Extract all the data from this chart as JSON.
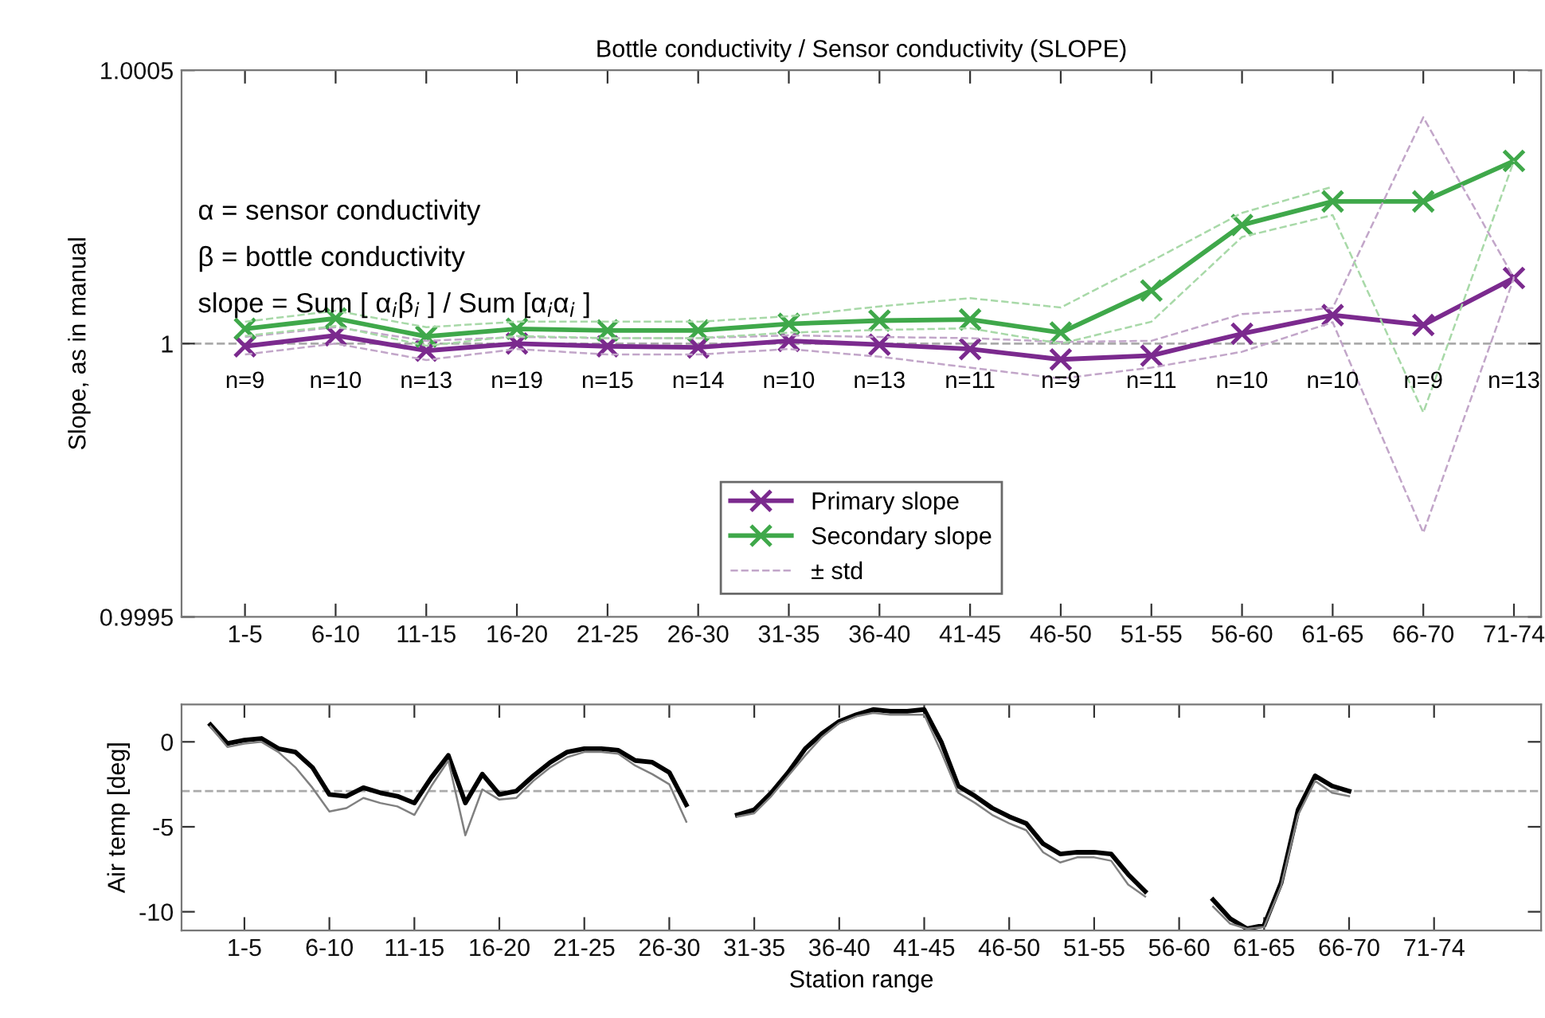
{
  "chart_data": [
    {
      "type": "line",
      "title": "Bottle conductivity / Sensor conductivity (SLOPE)",
      "ylabel": "Slope, as in manual",
      "categories": [
        "1-5",
        "6-10",
        "11-15",
        "16-20",
        "21-25",
        "26-30",
        "31-35",
        "36-40",
        "41-45",
        "46-50",
        "51-55",
        "56-60",
        "61-65",
        "66-70",
        "71-74"
      ],
      "ylim": [
        0.9995,
        1.0005
      ],
      "yticks": [
        0.9995,
        1,
        1.0005
      ],
      "marker": "cross",
      "line_style": "solid",
      "grid": false,
      "legend": "bottom",
      "series": [
        {
          "name": "Primary slope",
          "color": "#7b2a8e",
          "values": [
            0.999995,
            1.000015,
            0.999987,
            1.0,
            0.999995,
            0.999993,
            1.000005,
            0.999998,
            0.99999,
            0.999971,
            0.999978,
            1.000018,
            1.000052,
            1.000034,
            1.00012
          ]
        },
        {
          "name": "Secondary slope",
          "color": "#3fa84a",
          "values": [
            1.000027,
            1.000046,
            1.000013,
            1.000027,
            1.000024,
            1.000024,
            1.000036,
            1.000042,
            1.000044,
            1.00002,
            1.000097,
            1.000217,
            1.00026,
            1.00026,
            1.000334
          ]
        },
        {
          "name": "± std",
          "color": "#c2a6c9",
          "line_style": "dashed",
          "marker": "none",
          "values": [
            1.000012,
            1.00003,
            1.000005,
            1.000012,
            1.00001,
            1.00001,
            1.000015,
            1.000012,
            1.00001,
            1.000003,
            1.000005,
            1.000054,
            1.000065,
            1.000414,
            1.00012
          ]
        },
        {
          "color": "#c2a6c9",
          "line_style": "dashed",
          "marker": "none",
          "values": [
            0.99998,
            1.0,
            0.99997,
            0.99999,
            0.99998,
            0.99998,
            0.99999,
            0.999976,
            0.999956,
            0.999936,
            0.999956,
            0.999985,
            1.000039,
            0.999654,
            1.00012
          ]
        },
        {
          "color": "#a8d9a8",
          "line_style": "dashed",
          "marker": "none",
          "values": [
            1.00004,
            1.00006,
            1.00003,
            1.00004,
            1.00004,
            1.00004,
            1.00005,
            1.000068,
            1.000083,
            1.000066,
            1.000151,
            1.000239,
            1.000287,
            null,
            null
          ]
        },
        {
          "color": "#a8d9a8",
          "line_style": "dashed",
          "marker": "none",
          "values": [
            1.000014,
            1.000032,
            0.999996,
            1.000014,
            1.00001,
            1.00001,
            1.00002,
            1.000025,
            1.000028,
            1.0,
            1.00004,
            1.000195,
            1.000235,
            0.999874,
            1.000334
          ]
        }
      ],
      "ref_lines": [
        {
          "axis": "y",
          "value": 1,
          "color": "#aaaaaa",
          "line_style": "dashed"
        }
      ],
      "annotations": [
        "α = sensor conductivity",
        "β = bottle conductivity",
        "slope = Sum [ α$_{i}$β$_{i}$ ] / Sum [α$_{i}$α$_{i}$ ]",
        "n=9",
        "n=10",
        "n=13",
        "n=19",
        "n=15",
        "n=14",
        "n=10",
        "n=13",
        "n=11",
        "n=9",
        "n=11",
        "n=10",
        "n=10",
        "n=9",
        "n=13"
      ]
    },
    {
      "type": "line",
      "xlabel": "Station range",
      "ylabel": "Air temp [deg]",
      "ylim": [
        -11.1,
        2.2
      ],
      "yticks": [
        -10,
        -5,
        0
      ],
      "categories": [
        null,
        null,
        null,
        "1-5",
        null,
        null,
        null,
        null,
        "6-10",
        null,
        null,
        null,
        null,
        "11-15",
        null,
        null,
        null,
        null,
        "16-20",
        null,
        null,
        null,
        null,
        "21-25",
        null,
        null,
        null,
        null,
        "26-30",
        null,
        null,
        null,
        null,
        "31-35",
        null,
        null,
        null,
        null,
        "36-40",
        null,
        null,
        null,
        null,
        "41-45",
        null,
        null,
        null,
        null,
        "46-50",
        null,
        null,
        null,
        null,
        "51-55",
        null,
        null,
        null,
        null,
        "56-60",
        null,
        null,
        null,
        null,
        "61-65",
        null,
        null,
        null,
        null,
        "66-70",
        null,
        null,
        null,
        null,
        "71-74",
        null,
        null,
        null,
        null,
        null,
        null
      ],
      "grid": false,
      "marker": "none",
      "line_style": "solid",
      "series": [
        {
          "color": "#000000",
          "values": [
            null,
            1.0,
            -0.1,
            0.1,
            0.2,
            -0.4,
            -0.6,
            -1.5,
            -3.1,
            -3.2,
            -2.7,
            -3.0,
            -3.2,
            -3.6,
            -2.1,
            -0.8,
            -3.6,
            -1.9,
            -3.1,
            -2.9,
            -2.0,
            -1.2,
            -0.6,
            -0.4,
            -0.4,
            -0.5,
            -1.1,
            -1.2,
            -1.8,
            -3.7,
            null,
            null,
            -4.3,
            -4.0,
            -3.0,
            -1.8,
            -0.4,
            0.5,
            1.2,
            1.6,
            1.9,
            1.8,
            1.8,
            1.9,
            0.0,
            -2.6,
            -3.2,
            -3.9,
            -4.4,
            -4.8,
            -6.0,
            -6.6,
            -6.5,
            -6.5,
            -6.6,
            -7.8,
            -8.8,
            null,
            null,
            null,
            -9.3,
            -10.4,
            -11.0,
            -10.8,
            -8.3,
            -4.0,
            -2.0,
            -2.6,
            -2.9,
            null,
            null,
            null,
            null,
            null,
            null,
            null,
            null,
            null,
            null,
            null
          ]
        },
        {
          "color": "#808080",
          "values": [
            null,
            0.9,
            -0.3,
            -0.1,
            0.0,
            -0.6,
            -1.5,
            -2.7,
            -4.1,
            -3.9,
            -3.3,
            -3.6,
            -3.8,
            -4.3,
            -2.6,
            -1.1,
            -5.5,
            -2.8,
            -3.4,
            -3.3,
            -2.3,
            -1.5,
            -0.9,
            -0.6,
            -0.6,
            -0.7,
            -1.4,
            -1.9,
            -2.5,
            -4.7,
            null,
            null,
            -4.4,
            -4.2,
            -3.2,
            -2.0,
            -0.8,
            0.3,
            1.1,
            1.5,
            1.7,
            1.6,
            1.6,
            1.6,
            -0.6,
            -3.0,
            -3.6,
            -4.3,
            -4.8,
            -5.2,
            -6.5,
            -7.1,
            -6.8,
            -6.8,
            -7.0,
            -8.4,
            -9.1,
            null,
            null,
            null,
            -9.7,
            -10.7,
            -11.0,
            -10.9,
            -8.5,
            -4.3,
            -2.3,
            -3.0,
            -3.2,
            null,
            null,
            null,
            null,
            null,
            null,
            null,
            null,
            null,
            null,
            null
          ]
        }
      ],
      "ref_lines": [
        {
          "axis": "y",
          "value": -2.9,
          "color": "#aaaaaa",
          "line_style": "dashed"
        }
      ]
    }
  ]
}
